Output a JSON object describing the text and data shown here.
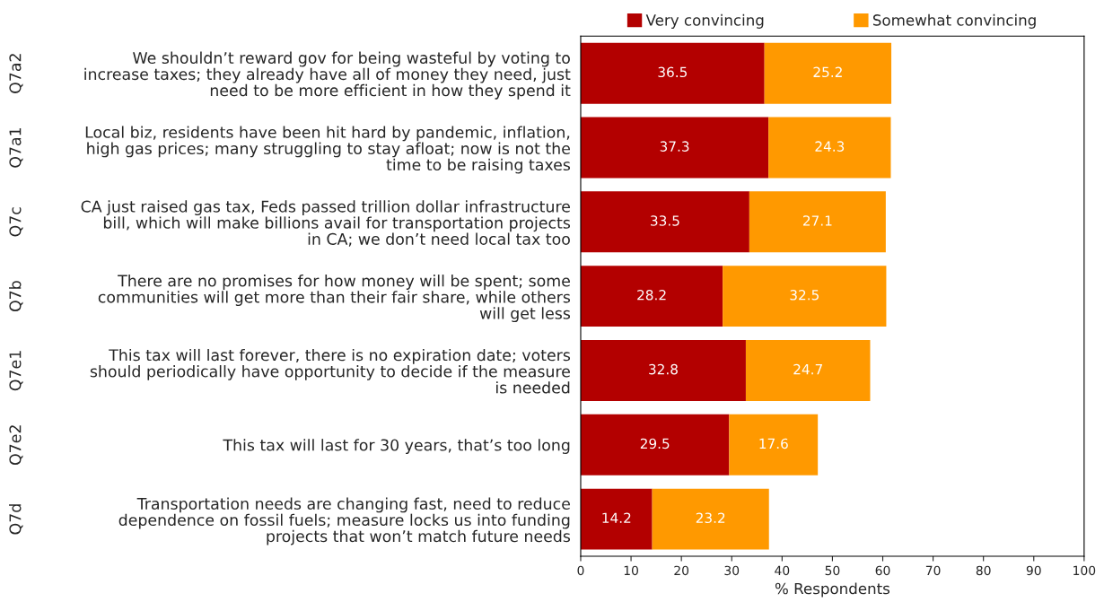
{
  "chart_data": {
    "type": "bar",
    "orientation": "horizontal",
    "stacked": true,
    "categories": [
      "We shouldn’t reward gov for being wasteful by voting to\nincrease taxes; they already have all of money they need, just\nneed to be more efficient in how they spend it",
      "Local biz, residents have been hit hard by pandemic, inflation,\nhigh gas prices; many struggling to stay afloat; now is not the\ntime to be raising taxes",
      "CA just raised gas tax, Feds passed trillion dollar infrastructure\nbill, which will make billions avail for transportation projects\nin CA; we don’t need local tax too",
      "There are no promises for how money will be spent; some\ncommunities will get more than their fair share, while others\nwill get less",
      "This tax will last forever, there is no expiration date; voters\nshould periodically have opportunity to decide if the measure\nis needed",
      "This tax will last for 30 years, that’s too long",
      "Transportation needs are changing fast, need to reduce\ndependence on fossil fuels; measure locks us into funding\nprojects that won’t match future needs"
    ],
    "series": [
      {
        "name": "Very convincing",
        "color": "#b30000",
        "values": [
          36.5,
          37.3,
          33.5,
          28.2,
          32.8,
          29.5,
          14.2
        ]
      },
      {
        "name": "Somewhat convincing",
        "color": "#ff9900",
        "values": [
          25.2,
          24.3,
          27.1,
          32.5,
          24.7,
          17.6,
          23.2
        ]
      }
    ],
    "data_labels": true,
    "xlabel": "% Respondents",
    "xlim": [
      0,
      100
    ],
    "xticks": [
      0,
      10,
      20,
      30,
      40,
      50,
      60,
      70,
      80,
      90,
      100
    ],
    "grid": false,
    "legend": "top",
    "annotations": [
      "Q7a2",
      "Q7a1",
      "Q7c",
      "Q7b",
      "Q7e1",
      "Q7e2",
      "Q7d"
    ]
  }
}
